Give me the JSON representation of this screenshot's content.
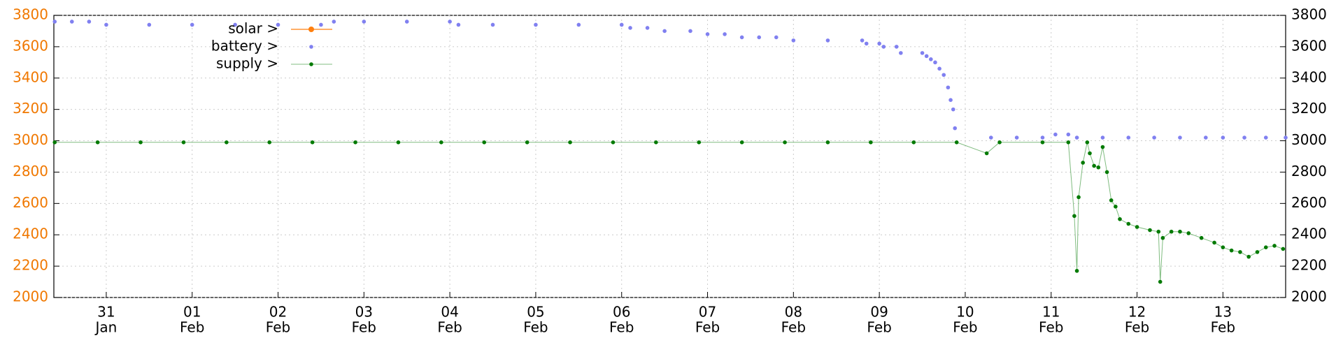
{
  "chart_data": {
    "type": "scatter-line",
    "xlim": [
      -0.61,
      13.73
    ],
    "xticks": [
      {
        "value": 0,
        "label": [
          "31",
          "Jan"
        ]
      },
      {
        "value": 1,
        "label": [
          "01",
          "Feb"
        ]
      },
      {
        "value": 2,
        "label": [
          "02",
          "Feb"
        ]
      },
      {
        "value": 3,
        "label": [
          "03",
          "Feb"
        ]
      },
      {
        "value": 4,
        "label": [
          "04",
          "Feb"
        ]
      },
      {
        "value": 5,
        "label": [
          "05",
          "Feb"
        ]
      },
      {
        "value": 6,
        "label": [
          "06",
          "Feb"
        ]
      },
      {
        "value": 7,
        "label": [
          "07",
          "Feb"
        ]
      },
      {
        "value": 8,
        "label": [
          "08",
          "Feb"
        ]
      },
      {
        "value": 9,
        "label": [
          "09",
          "Feb"
        ]
      },
      {
        "value": 10,
        "label": [
          "10",
          "Feb"
        ]
      },
      {
        "value": 11,
        "label": [
          "11",
          "Feb"
        ]
      },
      {
        "value": 12,
        "label": [
          "12",
          "Feb"
        ]
      },
      {
        "value": 13,
        "label": [
          "13",
          "Feb"
        ]
      }
    ],
    "ylim": [
      2000,
      3800
    ],
    "yticks": [
      2000,
      2200,
      2400,
      2600,
      2800,
      3000,
      3200,
      3400,
      3600,
      3800
    ],
    "y2lim": [
      2000,
      3800
    ],
    "y2ticks": [
      2000,
      2200,
      2400,
      2600,
      2800,
      3000,
      3200,
      3400,
      3600,
      3800
    ],
    "grid": true,
    "legend": "top-left",
    "series": [
      {
        "name": "solar >",
        "color": "#ff7f0e",
        "style": "linespoints",
        "x": [],
        "values": []
      },
      {
        "name": "battery >",
        "color": "#8080f0",
        "style": "points",
        "x": [
          -0.6,
          -0.4,
          -0.2,
          0,
          0.5,
          1,
          1.5,
          2,
          2.5,
          2.65,
          3,
          3.5,
          4,
          4.1,
          4.5,
          5,
          5.5,
          6,
          6.1,
          6.3,
          6.5,
          6.8,
          7.0,
          7.2,
          7.4,
          7.6,
          7.8,
          8.0,
          8.4,
          8.8,
          8.85,
          9.0,
          9.05,
          9.2,
          9.25,
          9.5,
          9.55,
          9.6,
          9.65,
          9.7,
          9.75,
          9.8,
          9.83,
          9.86,
          9.88,
          10.3,
          10.6,
          10.9,
          11.05,
          11.2,
          11.3,
          11.6,
          11.9,
          12.2,
          12.5,
          12.8,
          13.0,
          13.25,
          13.5,
          13.73
        ],
        "values": [
          3760,
          3760,
          3760,
          3740,
          3740,
          3740,
          3740,
          3740,
          3740,
          3760,
          3760,
          3760,
          3760,
          3740,
          3740,
          3740,
          3740,
          3740,
          3720,
          3720,
          3700,
          3700,
          3680,
          3680,
          3660,
          3660,
          3660,
          3640,
          3640,
          3640,
          3620,
          3620,
          3600,
          3600,
          3560,
          3560,
          3540,
          3520,
          3500,
          3460,
          3420,
          3340,
          3260,
          3200,
          3080,
          3020,
          3020,
          3020,
          3040,
          3040,
          3020,
          3020,
          3020,
          3020,
          3020,
          3020,
          3020,
          3020,
          3020,
          3020
        ]
      },
      {
        "name": "supply >",
        "color": "#007a00",
        "style": "linespoints",
        "x": [
          -0.6,
          -0.1,
          0.4,
          0.9,
          1.4,
          1.9,
          2.4,
          2.9,
          3.4,
          3.9,
          4.4,
          4.9,
          5.4,
          5.9,
          6.4,
          6.9,
          7.4,
          7.9,
          8.4,
          8.9,
          9.4,
          9.9,
          10.25,
          10.4,
          10.9,
          11.2,
          11.27,
          11.3,
          11.32,
          11.37,
          11.42,
          11.45,
          11.5,
          11.55,
          11.6,
          11.65,
          11.7,
          11.75,
          11.8,
          11.9,
          12.0,
          12.15,
          12.25,
          12.27,
          12.3,
          12.4,
          12.5,
          12.6,
          12.75,
          12.9,
          13.0,
          13.1,
          13.2,
          13.3,
          13.4,
          13.5,
          13.6,
          13.7
        ],
        "values": [
          2990,
          2990,
          2990,
          2990,
          2990,
          2990,
          2990,
          2990,
          2990,
          2990,
          2990,
          2990,
          2990,
          2990,
          2990,
          2990,
          2990,
          2990,
          2990,
          2990,
          2990,
          2990,
          2920,
          2990,
          2990,
          2990,
          2520,
          2170,
          2640,
          2860,
          2990,
          2920,
          2840,
          2830,
          2960,
          2800,
          2620,
          2580,
          2500,
          2470,
          2450,
          2430,
          2420,
          2100,
          2380,
          2420,
          2420,
          2410,
          2380,
          2350,
          2320,
          2300,
          2290,
          2260,
          2290,
          2320,
          2330,
          2310
        ]
      }
    ]
  }
}
